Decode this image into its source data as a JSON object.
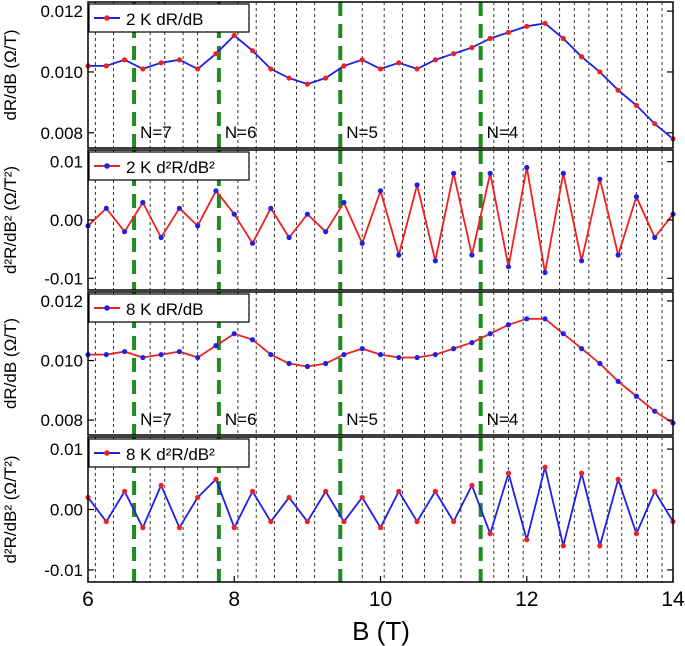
{
  "chart_data": {
    "type": "line",
    "xlabel": "B (T)",
    "xlim": [
      6,
      14
    ],
    "x_ticks": [
      "6",
      "8",
      "10",
      "12",
      "14"
    ],
    "colors": {
      "blue": "#1f1fe6",
      "red": "#ee2020",
      "green": "#1f8c1f"
    },
    "landau_levels": [
      {
        "label": "N=7",
        "x": 6.63
      },
      {
        "label": "N=6",
        "x": 7.79
      },
      {
        "label": "N=5",
        "x": 9.45
      },
      {
        "label": "N=4",
        "x": 11.37
      }
    ],
    "minor_markers": [
      6.1,
      6.35,
      6.85,
      7.05,
      7.3,
      7.5,
      8.05,
      8.3,
      8.55,
      8.85,
      9.1,
      9.75,
      10.05,
      10.3,
      10.6,
      10.85,
      11.1,
      11.55,
      11.75,
      11.95,
      12.2,
      12.45,
      12.65,
      12.85,
      13.1,
      13.3,
      13.5,
      13.65,
      13.85
    ],
    "panels": [
      {
        "ylabel": "dR/dB (Ω/T)",
        "ylim": [
          0.0075,
          0.0123
        ],
        "y_ticks": [
          "0.012",
          "0.010",
          "0.008"
        ],
        "legend": "2 K dR/dB",
        "line_color": "blue",
        "marker_color": "red",
        "show_levels": true,
        "x": [
          6,
          6.25,
          6.5,
          6.75,
          7,
          7.25,
          7.5,
          7.75,
          8,
          8.25,
          8.5,
          8.75,
          9,
          9.25,
          9.5,
          9.75,
          10,
          10.25,
          10.5,
          10.75,
          11,
          11.25,
          11.5,
          11.75,
          12,
          12.25,
          12.5,
          12.75,
          13,
          13.25,
          13.5,
          13.75,
          14
        ],
        "y": [
          0.0102,
          0.0102,
          0.0104,
          0.0101,
          0.0103,
          0.0104,
          0.0101,
          0.0106,
          0.0112,
          0.0107,
          0.0101,
          0.0098,
          0.0096,
          0.0098,
          0.0102,
          0.0104,
          0.0101,
          0.0103,
          0.0101,
          0.0104,
          0.0106,
          0.0108,
          0.0111,
          0.0113,
          0.0115,
          0.0116,
          0.0111,
          0.0105,
          0.01,
          0.0094,
          0.0089,
          0.0083,
          0.0078
        ]
      },
      {
        "ylabel": "d²R/dB² (Ω/T²)",
        "ylim": [
          -0.012,
          0.012
        ],
        "y_ticks": [
          "0.01",
          "0.00",
          "-0.01"
        ],
        "legend": "2 K d²R/dB²",
        "line_color": "red",
        "marker_color": "blue",
        "show_levels": false,
        "x": [
          6,
          6.25,
          6.5,
          6.75,
          7,
          7.25,
          7.5,
          7.75,
          8,
          8.25,
          8.5,
          8.75,
          9,
          9.25,
          9.5,
          9.75,
          10,
          10.25,
          10.5,
          10.75,
          11,
          11.25,
          11.5,
          11.75,
          12,
          12.25,
          12.5,
          12.75,
          13,
          13.25,
          13.5,
          13.75,
          14
        ],
        "y": [
          -0.001,
          0.002,
          -0.002,
          0.003,
          -0.003,
          0.002,
          -0.001,
          0.005,
          0.001,
          -0.004,
          0.002,
          -0.003,
          0.001,
          -0.002,
          0.003,
          -0.004,
          0.005,
          -0.006,
          0.006,
          -0.007,
          0.008,
          -0.006,
          0.008,
          -0.008,
          0.009,
          -0.009,
          0.008,
          -0.007,
          0.007,
          -0.006,
          0.004,
          -0.003,
          0.001
        ]
      },
      {
        "ylabel": "dR/dB (Ω/T)",
        "ylim": [
          0.0075,
          0.0123
        ],
        "y_ticks": [
          "0.012",
          "0.010",
          "0.008"
        ],
        "legend": "8 K dR/dB",
        "line_color": "red",
        "marker_color": "blue",
        "show_levels": true,
        "x": [
          6,
          6.25,
          6.5,
          6.75,
          7,
          7.25,
          7.5,
          7.75,
          8,
          8.25,
          8.5,
          8.75,
          9,
          9.25,
          9.5,
          9.75,
          10,
          10.25,
          10.5,
          10.75,
          11,
          11.25,
          11.5,
          11.75,
          12,
          12.25,
          12.5,
          12.75,
          13,
          13.25,
          13.5,
          13.75,
          14
        ],
        "y": [
          0.0102,
          0.0102,
          0.0103,
          0.0101,
          0.0102,
          0.0103,
          0.0101,
          0.0105,
          0.0109,
          0.0107,
          0.0102,
          0.0099,
          0.0098,
          0.0099,
          0.0102,
          0.0104,
          0.0102,
          0.0101,
          0.0101,
          0.0102,
          0.0104,
          0.0106,
          0.0109,
          0.0112,
          0.0114,
          0.0114,
          0.0109,
          0.0104,
          0.0099,
          0.0093,
          0.0088,
          0.0083,
          0.0079
        ]
      },
      {
        "ylabel": "d²R/dB² (Ω/T²)",
        "ylim": [
          -0.012,
          0.012
        ],
        "y_ticks": [
          "0.01",
          "0.00",
          "-0.01"
        ],
        "legend": "8 K d²R/dB²",
        "line_color": "blue",
        "marker_color": "red",
        "show_levels": false,
        "x": [
          6,
          6.25,
          6.5,
          6.75,
          7,
          7.25,
          7.5,
          7.75,
          8,
          8.25,
          8.5,
          8.75,
          9,
          9.25,
          9.5,
          9.75,
          10,
          10.25,
          10.5,
          10.75,
          11,
          11.25,
          11.5,
          11.75,
          12,
          12.25,
          12.5,
          12.75,
          13,
          13.25,
          13.5,
          13.75,
          14
        ],
        "y": [
          0.002,
          -0.002,
          0.003,
          -0.003,
          0.004,
          -0.003,
          0.002,
          0.005,
          -0.003,
          0.003,
          -0.002,
          0.002,
          -0.002,
          0.003,
          -0.002,
          0.002,
          -0.003,
          0.003,
          -0.002,
          0.003,
          -0.002,
          0.004,
          -0.004,
          0.006,
          -0.005,
          0.007,
          -0.006,
          0.006,
          -0.006,
          0.005,
          -0.004,
          0.003,
          -0.002
        ]
      }
    ]
  }
}
